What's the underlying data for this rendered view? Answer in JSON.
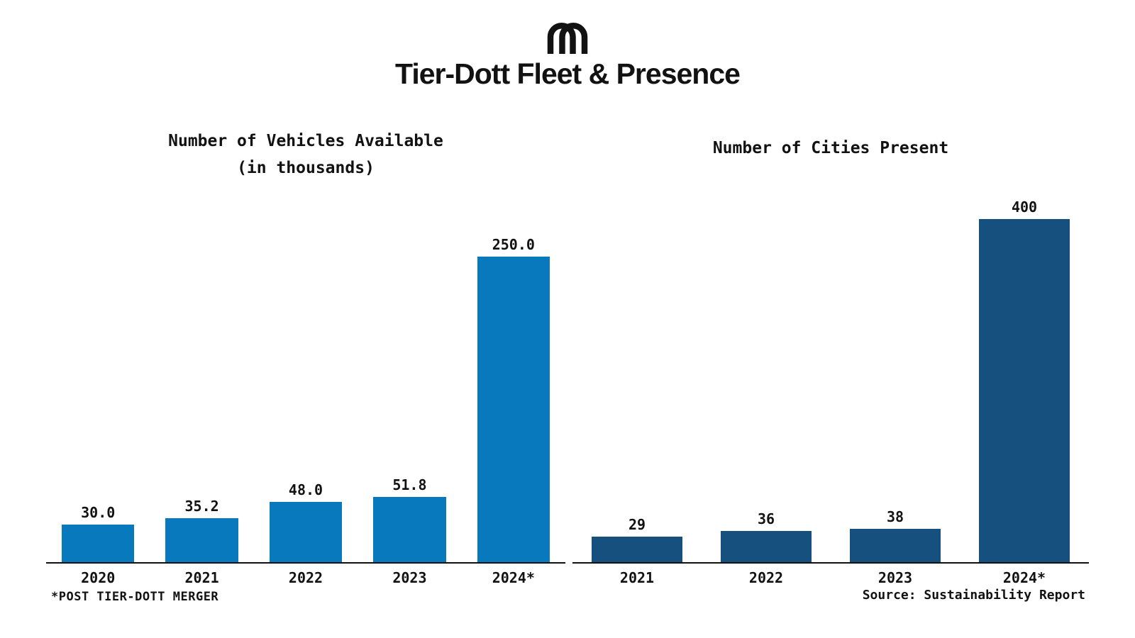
{
  "page": {
    "background": "#ffffff",
    "text_color": "#111111"
  },
  "header": {
    "logo_icon": "tier-dott-arches-monogram",
    "title": "Tier-Dott Fleet & Presence"
  },
  "chart_data": [
    {
      "type": "bar",
      "title": "Number of Vehicles Available",
      "subtitle": "(in thousands)",
      "categories": [
        "2020",
        "2021",
        "2022",
        "2023",
        "2024*"
      ],
      "values": [
        30.0,
        35.2,
        48.0,
        51.8,
        250.0
      ],
      "value_labels": [
        "30.0",
        "35.2",
        "48.0",
        "51.8",
        "250.0"
      ],
      "bar_color": "#0979bd",
      "ylim": [
        0,
        260
      ],
      "grid": false,
      "legend": "none",
      "xlabel": "",
      "ylabel": ""
    },
    {
      "type": "bar",
      "title": "Number of Cities Present",
      "subtitle": "",
      "categories": [
        "2021",
        "2022",
        "2023",
        "2024*"
      ],
      "values": [
        29,
        36,
        38,
        400
      ],
      "value_labels": [
        "29",
        "36",
        "38",
        "400"
      ],
      "bar_color": "#15507f",
      "ylim": [
        0,
        415
      ],
      "grid": false,
      "legend": "none",
      "xlabel": "",
      "ylabel": ""
    }
  ],
  "footnotes": {
    "left": "*POST TIER-DOTT MERGER",
    "right": "Source: Sustainability Report"
  }
}
